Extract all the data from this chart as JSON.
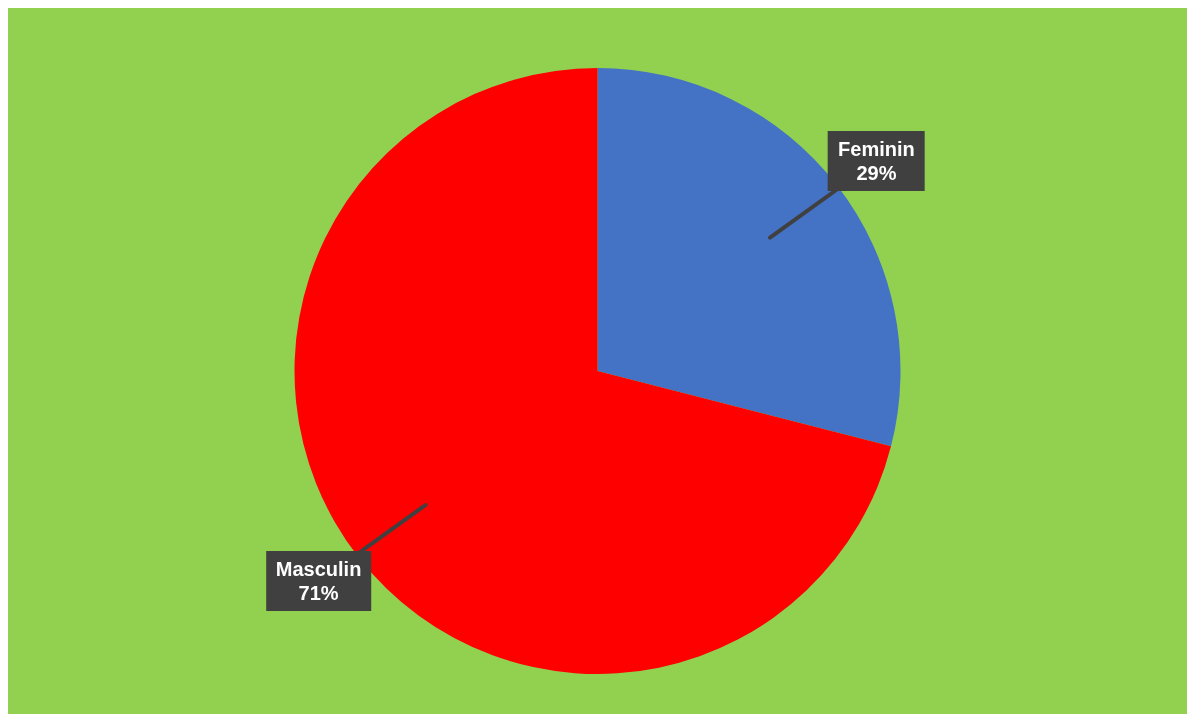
{
  "chart_data": {
    "type": "pie",
    "categories": [
      "Feminin",
      "Masculin"
    ],
    "values": [
      29,
      71
    ],
    "colors": [
      "#4472c4",
      "#ff0000"
    ],
    "value_labels": [
      "29%",
      "71%"
    ],
    "legend": false
  }
}
